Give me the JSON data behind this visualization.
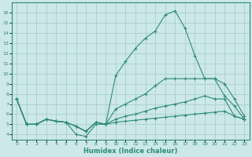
{
  "x": [
    0,
    1,
    2,
    3,
    4,
    5,
    6,
    7,
    8,
    9,
    10,
    11,
    12,
    13,
    14,
    15,
    16,
    17,
    18,
    19,
    20,
    21,
    22,
    23
  ],
  "line1": [
    7.5,
    5.0,
    5.0,
    5.5,
    5.3,
    5.2,
    4.8,
    4.3,
    5.2,
    5.0,
    5.2,
    5.3,
    5.4,
    5.5,
    5.6,
    5.7,
    5.8,
    5.9,
    6.0,
    6.1,
    6.2,
    6.3,
    5.8,
    5.5
  ],
  "line2": [
    7.5,
    5.0,
    5.0,
    5.5,
    5.3,
    5.2,
    4.8,
    4.3,
    5.2,
    5.0,
    5.5,
    5.8,
    6.0,
    6.3,
    6.6,
    6.8,
    7.0,
    7.2,
    7.5,
    7.8,
    7.5,
    7.5,
    5.8,
    5.5
  ],
  "line3": [
    7.5,
    5.0,
    5.0,
    5.5,
    5.3,
    5.2,
    4.8,
    4.3,
    5.2,
    5.0,
    6.5,
    7.0,
    7.5,
    8.0,
    8.8,
    9.5,
    9.5,
    9.5,
    9.5,
    9.5,
    9.5,
    9.0,
    7.5,
    5.8
  ],
  "line4": [
    7.5,
    5.0,
    5.0,
    5.5,
    5.3,
    5.2,
    4.0,
    3.8,
    5.0,
    5.0,
    9.8,
    11.2,
    12.5,
    13.5,
    14.2,
    15.8,
    16.2,
    14.5,
    11.8,
    9.5,
    9.5,
    7.8,
    6.8,
    5.5
  ],
  "color": "#2e8b74",
  "bg_color": "#cce8e8",
  "grid_color": "#aacece",
  "xlabel": "Humidex (Indice chaleur)",
  "ylim": [
    3.5,
    17
  ],
  "xlim": [
    -0.5,
    23.5
  ],
  "yticks": [
    4,
    5,
    6,
    7,
    8,
    9,
    10,
    11,
    12,
    13,
    14,
    15,
    16
  ],
  "xticks": [
    0,
    1,
    2,
    3,
    4,
    5,
    6,
    7,
    8,
    9,
    10,
    11,
    12,
    13,
    14,
    15,
    16,
    17,
    18,
    19,
    20,
    21,
    22,
    23
  ]
}
